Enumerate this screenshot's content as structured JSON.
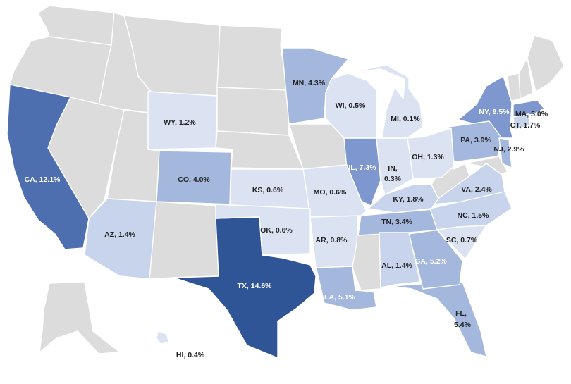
{
  "colors": {
    "no_data": "#dcdcdc",
    "tier1": "#dbe3f3",
    "tier2": "#c7d4ec",
    "tier3": "#a4b7dc",
    "tier4": "#7e97cf",
    "tier5": "#4d6fb0",
    "tier6": "#2f5597",
    "label_dark": "#222222",
    "label_light": "#ffffff"
  },
  "states": [
    {
      "id": "CA",
      "label": "CA, 12.1%"
    },
    {
      "id": "TX",
      "label": "TX, 14.6%"
    },
    {
      "id": "NY",
      "label": "NY, 9.5%"
    },
    {
      "id": "IL",
      "label": "IL, 7.3%"
    },
    {
      "id": "FL",
      "label": "FL,",
      "label2": "5.4%"
    },
    {
      "id": "GA",
      "label": "GA, 5.2%"
    },
    {
      "id": "LA",
      "label": "LA, 5.1%"
    },
    {
      "id": "MA",
      "label": "MA, 5.0%"
    },
    {
      "id": "MN",
      "label": "MN, 4.3%"
    },
    {
      "id": "CO",
      "label": "CO, 4.0%"
    },
    {
      "id": "PA",
      "label": "PA, 3.9%"
    },
    {
      "id": "TN",
      "label": "TN, 3.4%"
    },
    {
      "id": "NJ",
      "label": "NJ, 2.9%"
    },
    {
      "id": "VA",
      "label": "VA, 2.4%"
    },
    {
      "id": "KY",
      "label": "KY, 1.8%"
    },
    {
      "id": "CT",
      "label": "CT, 1.7%"
    },
    {
      "id": "NC",
      "label": "NC, 1.5%"
    },
    {
      "id": "AZ",
      "label": "AZ, 1.4%"
    },
    {
      "id": "AL",
      "label": "AL, 1.4%"
    },
    {
      "id": "OH",
      "label": "OH, 1.3%"
    },
    {
      "id": "WY",
      "label": "WY, 1.2%"
    },
    {
      "id": "AR",
      "label": "AR, 0.8%"
    },
    {
      "id": "SC",
      "label": "SC, 0.7%"
    },
    {
      "id": "KS",
      "label": "KS, 0.6%"
    },
    {
      "id": "MO",
      "label": "MO, 0.6%"
    },
    {
      "id": "OK",
      "label": "OK, 0.6%"
    },
    {
      "id": "WI",
      "label": "WI, 0.5%"
    },
    {
      "id": "HI",
      "label": "HI, 0.4%"
    },
    {
      "id": "IN",
      "label": "IN,",
      "label2": "0.3%"
    },
    {
      "id": "MI",
      "label": "MI, 0.1%"
    }
  ]
}
